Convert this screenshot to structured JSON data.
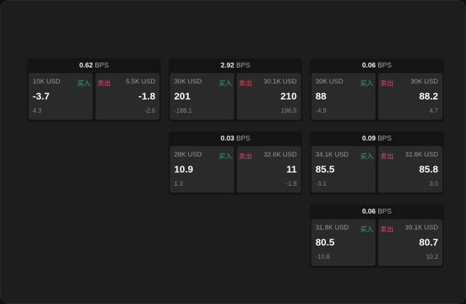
{
  "labels": {
    "buy": "买入",
    "sell": "卖出",
    "unit": "BPS"
  },
  "colors": {
    "buy": "#2fb36b",
    "sell": "#e04a6a"
  },
  "cards": [
    {
      "spread": "0.62",
      "bid_qty": "10K USD",
      "bid": "-3.7",
      "bid_chg": "4.3",
      "ask_qty": "5.5K USD",
      "ask": "-1.8",
      "ask_chg": "-2.6"
    },
    {
      "spread": "2.92",
      "bid_qty": "30K USD",
      "bid": "201",
      "bid_chg": "-188.1",
      "ask_qty": "30.1K USD",
      "ask": "210",
      "ask_chg": "196.5"
    },
    {
      "spread": "0.06",
      "bid_qty": "30K USD",
      "bid": "88",
      "bid_chg": "-4.9",
      "ask_qty": "30K USD",
      "ask": "88.2",
      "ask_chg": "4.7"
    },
    {
      "spread": "0.03",
      "bid_qty": "28K USD",
      "bid": "10.9",
      "bid_chg": "1.3",
      "ask_qty": "32.6K USD",
      "ask": "11",
      "ask_chg": "-1.8"
    },
    {
      "spread": "0.09",
      "bid_qty": "34.1K USD",
      "bid": "85.5",
      "bid_chg": "-3.1",
      "ask_qty": "32.8K USD",
      "ask": "85.8",
      "ask_chg": "3.0"
    },
    {
      "spread": "0.06",
      "bid_qty": "31.8K USD",
      "bid": "80.5",
      "bid_chg": "-10.8",
      "ask_qty": "39.1K USD",
      "ask": "80.7",
      "ask_chg": "10.2"
    }
  ]
}
